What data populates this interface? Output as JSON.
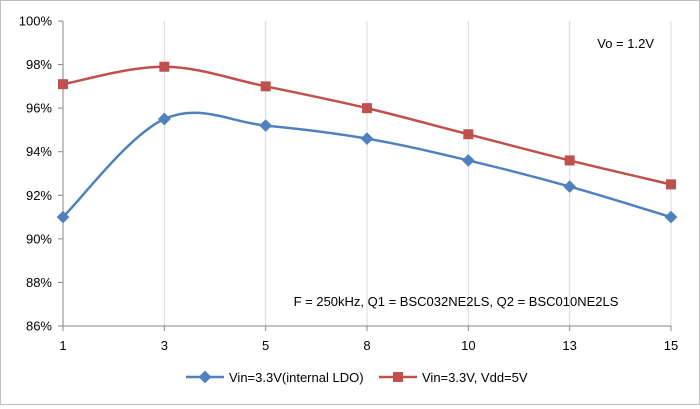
{
  "chart_data": {
    "type": "line",
    "categories": [
      "1",
      "3",
      "5",
      "8",
      "10",
      "13",
      "15"
    ],
    "ylim": [
      86,
      100
    ],
    "yticks": [
      86,
      88,
      90,
      92,
      94,
      96,
      98,
      100
    ],
    "ytick_labels": [
      "86%",
      "88%",
      "90%",
      "92%",
      "94%",
      "96%",
      "98%",
      "100%"
    ],
    "grid": "vertical",
    "legend_position": "bottom",
    "series": [
      {
        "name": "Vin=3.3V(internal LDO)",
        "color": "#4f81bd",
        "marker": "diamond",
        "values": [
          91.0,
          95.5,
          95.2,
          94.6,
          93.6,
          92.4,
          91.0
        ]
      },
      {
        "name": "Vin=3.3V, Vdd=5V",
        "color": "#c0504d",
        "marker": "square",
        "values": [
          97.1,
          97.9,
          97.0,
          96.0,
          94.8,
          93.6,
          92.5
        ]
      }
    ],
    "annotations": [
      {
        "id": "vo",
        "text": "Vo = 1.2V"
      },
      {
        "id": "cond",
        "text": "F = 250kHz, Q1 = BSC032NE2LS, Q2 = BSC010NE2LS"
      }
    ]
  }
}
